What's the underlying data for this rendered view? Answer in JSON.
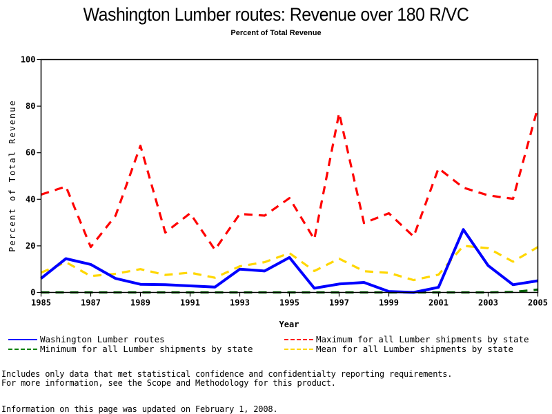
{
  "chart_data": {
    "type": "line",
    "title": "Washington Lumber routes: Revenue over 180 R/VC",
    "subtitle": "Percent of Total Revenue",
    "xlabel": "Year",
    "ylabel": "Percent of Total Revenue",
    "xlim": [
      1985,
      2005
    ],
    "ylim": [
      0,
      100
    ],
    "x_ticks": [
      "1985",
      "1987",
      "1989",
      "1991",
      "1993",
      "1995",
      "1997",
      "1999",
      "2001",
      "2003",
      "2005"
    ],
    "y_ticks": [
      "0",
      "20",
      "40",
      "60",
      "80",
      "100"
    ],
    "grid": false,
    "legend_position": "bottom",
    "x": [
      1985,
      1986,
      1987,
      1988,
      1989,
      1990,
      1991,
      1992,
      1993,
      1994,
      1995,
      1996,
      1997,
      1998,
      1999,
      2000,
      2001,
      2002,
      2003,
      2004,
      2005
    ],
    "series": [
      {
        "name": "Washington Lumber routes",
        "color": "#0000ff",
        "style": "solid",
        "values": [
          6,
          14.5,
          12,
          6,
          3.5,
          3.3,
          2.8,
          2.3,
          10,
          9.2,
          15,
          1.8,
          3.6,
          4.3,
          0.4,
          0,
          2.2,
          27,
          11.5,
          3.3,
          5
        ]
      },
      {
        "name": "Maximum for all Lumber shipments by state",
        "color": "#ff0000",
        "style": "dashed",
        "values": [
          42,
          45.5,
          19.5,
          33,
          63,
          25.7,
          34,
          18.3,
          33.7,
          33,
          40.5,
          22.8,
          77,
          29.8,
          34,
          24,
          53.3,
          45,
          41.7,
          40.2,
          79.5
        ]
      },
      {
        "name": "Minimum for all Lumber shipments by state",
        "color": "#006400",
        "style": "dashed",
        "values": [
          0,
          0,
          0,
          0,
          0,
          0,
          0,
          0,
          0,
          0,
          0,
          0,
          0,
          0,
          0,
          0,
          0,
          0,
          0,
          0.2,
          1.2
        ]
      },
      {
        "name": "Mean for all Lumber shipments by state",
        "color": "#ffd700",
        "style": "dashed",
        "values": [
          8.5,
          13,
          7,
          8,
          10,
          7.5,
          8.5,
          6.3,
          11.2,
          13,
          16.9,
          9.2,
          14.5,
          9.1,
          8.4,
          5.3,
          7.6,
          20,
          19,
          13.2,
          19.5
        ]
      }
    ]
  },
  "legend": {
    "left": [
      {
        "label": "Washington Lumber routes",
        "color": "#0000ff",
        "style": "solid"
      },
      {
        "label": "Minimum for all Lumber shipments by state",
        "color": "#006400",
        "style": "dashed"
      }
    ],
    "right": [
      {
        "label": "Maximum for all Lumber shipments by state",
        "color": "#ff0000",
        "style": "dashed"
      },
      {
        "label": "Mean for all Lumber shipments by state",
        "color": "#ffd700",
        "style": "dashed"
      }
    ]
  },
  "footnotes": {
    "line1": "Includes only data that met statistical confidence and confidentialty reporting requirements.",
    "line2": "For more information, see the Scope and Methodology for this product.",
    "updated": "Information on this page was updated on February 1, 2008."
  }
}
